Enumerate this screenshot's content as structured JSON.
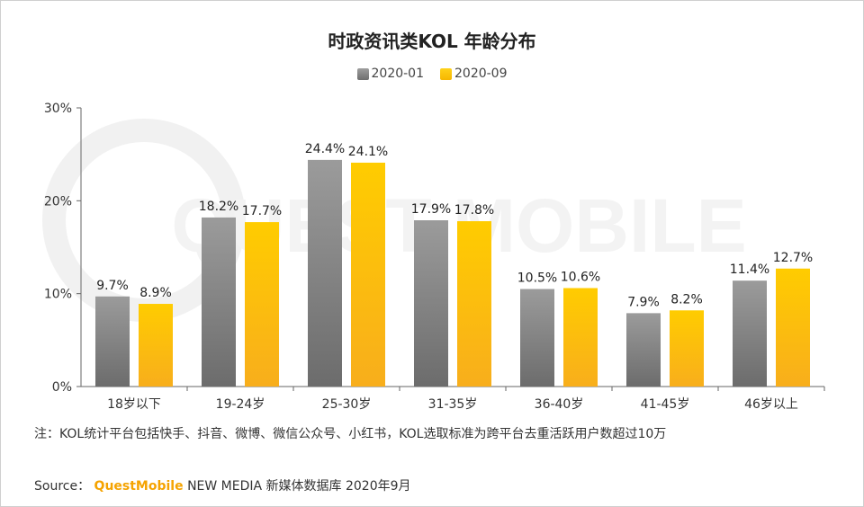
{
  "chart_data": {
    "type": "bar",
    "title": "时政资讯类KOL 年龄分布",
    "categories": [
      "18岁以下",
      "19-24岁",
      "25-30岁",
      "31-35岁",
      "36-40岁",
      "41-45岁",
      "46岁以上"
    ],
    "series": [
      {
        "name": "2020-01",
        "values": [
          9.7,
          18.2,
          24.4,
          17.9,
          10.5,
          7.9,
          11.4
        ],
        "labels": [
          "9.7%",
          "18.2%",
          "24.4%",
          "17.9%",
          "10.5%",
          "7.9%",
          "11.4%"
        ]
      },
      {
        "name": "2020-09",
        "values": [
          8.9,
          17.7,
          24.1,
          17.8,
          10.6,
          8.2,
          12.7
        ],
        "labels": [
          "8.9%",
          "17.7%",
          "24.1%",
          "17.8%",
          "10.6%",
          "8.2%",
          "12.7%"
        ]
      }
    ],
    "yticks": [
      "0%",
      "10%",
      "20%",
      "30%"
    ],
    "ylim": [
      0,
      30
    ],
    "grid": false,
    "legend": "top-center",
    "colors": [
      "#8a8a8a",
      "#fcc200"
    ]
  },
  "note": "注：KOL统计平台包括快手、抖音、微博、微信公众号、小红书，KOL选取标准为跨平台去重活跃用户数超过10万",
  "source": {
    "prefix": "Source：",
    "brand": "QuestMobile",
    "rest": "NEW MEDIA 新媒体数据库 2020年9月"
  },
  "watermark": "QUEST MOBILE"
}
